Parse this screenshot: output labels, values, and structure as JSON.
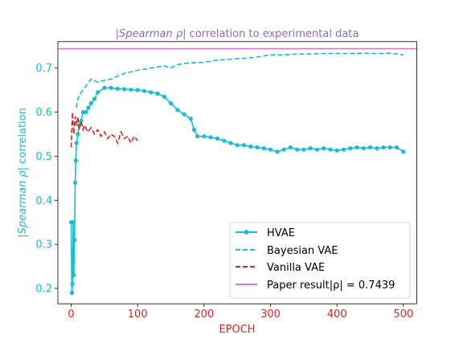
{
  "chart_data": {
    "type": "line",
    "title_parts": [
      "|",
      "Spearman ρ",
      "| correlation to experimental data"
    ],
    "xlabel": "EPOCH",
    "ylabel_parts": [
      "|",
      "Spearman ρ",
      "| correlation"
    ],
    "xlim": [
      -20,
      520
    ],
    "ylim": [
      0.165,
      0.76
    ],
    "x_ticks": [
      0,
      100,
      200,
      300,
      400,
      500
    ],
    "y_ticks": [
      0.2,
      0.3,
      0.4,
      0.5,
      0.6,
      0.7
    ],
    "grid": false,
    "legend_position": "lower-right",
    "colors": {
      "title": "#9467bd",
      "axis_label": "#17becf",
      "x_tick": "#d62728",
      "y_tick": "#17becf",
      "xlabel": "#d62728"
    },
    "series": [
      {
        "name": "HVAE",
        "style": "solid-marker",
        "color": "#17becf",
        "points": [
          [
            0,
            0.35
          ],
          [
            1,
            0.19
          ],
          [
            2,
            0.21
          ],
          [
            3,
            0.35
          ],
          [
            4,
            0.23
          ],
          [
            5,
            0.31
          ],
          [
            6,
            0.44
          ],
          [
            7,
            0.49
          ],
          [
            8,
            0.53
          ],
          [
            10,
            0.55
          ],
          [
            12,
            0.57
          ],
          [
            15,
            0.58
          ],
          [
            18,
            0.6
          ],
          [
            22,
            0.6
          ],
          [
            26,
            0.61
          ],
          [
            30,
            0.62
          ],
          [
            35,
            0.63
          ],
          [
            40,
            0.645
          ],
          [
            50,
            0.655
          ],
          [
            60,
            0.655
          ],
          [
            70,
            0.653
          ],
          [
            80,
            0.652
          ],
          [
            90,
            0.651
          ],
          [
            100,
            0.65
          ],
          [
            110,
            0.648
          ],
          [
            120,
            0.645
          ],
          [
            130,
            0.642
          ],
          [
            140,
            0.635
          ],
          [
            150,
            0.62
          ],
          [
            160,
            0.605
          ],
          [
            170,
            0.595
          ],
          [
            180,
            0.585
          ],
          [
            185,
            0.56
          ],
          [
            190,
            0.545
          ],
          [
            200,
            0.545
          ],
          [
            210,
            0.543
          ],
          [
            220,
            0.54
          ],
          [
            230,
            0.535
          ],
          [
            240,
            0.53
          ],
          [
            250,
            0.525
          ],
          [
            260,
            0.525
          ],
          [
            270,
            0.522
          ],
          [
            280,
            0.52
          ],
          [
            290,
            0.518
          ],
          [
            300,
            0.515
          ],
          [
            310,
            0.51
          ],
          [
            320,
            0.515
          ],
          [
            330,
            0.52
          ],
          [
            340,
            0.515
          ],
          [
            350,
            0.515
          ],
          [
            360,
            0.518
          ],
          [
            370,
            0.515
          ],
          [
            380,
            0.518
          ],
          [
            390,
            0.515
          ],
          [
            400,
            0.513
          ],
          [
            410,
            0.515
          ],
          [
            420,
            0.518
          ],
          [
            430,
            0.52
          ],
          [
            440,
            0.518
          ],
          [
            450,
            0.52
          ],
          [
            460,
            0.518
          ],
          [
            470,
            0.52
          ],
          [
            480,
            0.52
          ],
          [
            490,
            0.52
          ],
          [
            500,
            0.51
          ]
        ]
      },
      {
        "name": "Bayesian VAE",
        "style": "dashed",
        "color": "#17becf",
        "points": [
          [
            8,
            0.61
          ],
          [
            10,
            0.63
          ],
          [
            15,
            0.645
          ],
          [
            20,
            0.655
          ],
          [
            25,
            0.665
          ],
          [
            30,
            0.675
          ],
          [
            40,
            0.668
          ],
          [
            50,
            0.672
          ],
          [
            60,
            0.675
          ],
          [
            70,
            0.682
          ],
          [
            80,
            0.688
          ],
          [
            100,
            0.695
          ],
          [
            120,
            0.7
          ],
          [
            140,
            0.705
          ],
          [
            150,
            0.7
          ],
          [
            160,
            0.708
          ],
          [
            180,
            0.712
          ],
          [
            200,
            0.713
          ],
          [
            220,
            0.718
          ],
          [
            240,
            0.72
          ],
          [
            260,
            0.722
          ],
          [
            280,
            0.725
          ],
          [
            300,
            0.73
          ],
          [
            320,
            0.73
          ],
          [
            340,
            0.732
          ],
          [
            360,
            0.732
          ],
          [
            380,
            0.733
          ],
          [
            400,
            0.733
          ],
          [
            420,
            0.733
          ],
          [
            440,
            0.734
          ],
          [
            460,
            0.733
          ],
          [
            480,
            0.734
          ],
          [
            500,
            0.73
          ]
        ]
      },
      {
        "name": "Vanilla VAE",
        "style": "dashed",
        "color": "#d62728",
        "points": [
          [
            0,
            0.52
          ],
          [
            2,
            0.6
          ],
          [
            4,
            0.55
          ],
          [
            6,
            0.59
          ],
          [
            8,
            0.57
          ],
          [
            10,
            0.59
          ],
          [
            12,
            0.56
          ],
          [
            15,
            0.58
          ],
          [
            18,
            0.56
          ],
          [
            20,
            0.57
          ],
          [
            25,
            0.555
          ],
          [
            30,
            0.565
          ],
          [
            35,
            0.55
          ],
          [
            40,
            0.56
          ],
          [
            45,
            0.545
          ],
          [
            50,
            0.555
          ],
          [
            55,
            0.54
          ],
          [
            60,
            0.55
          ],
          [
            65,
            0.545
          ],
          [
            70,
            0.53
          ],
          [
            75,
            0.555
          ],
          [
            80,
            0.54
          ],
          [
            85,
            0.545
          ],
          [
            90,
            0.53
          ],
          [
            95,
            0.545
          ],
          [
            100,
            0.535
          ]
        ]
      },
      {
        "name": "Paper result|ρ| = 0.7439",
        "style": "solid",
        "color": "#e377c2",
        "y": 0.7439
      }
    ]
  }
}
